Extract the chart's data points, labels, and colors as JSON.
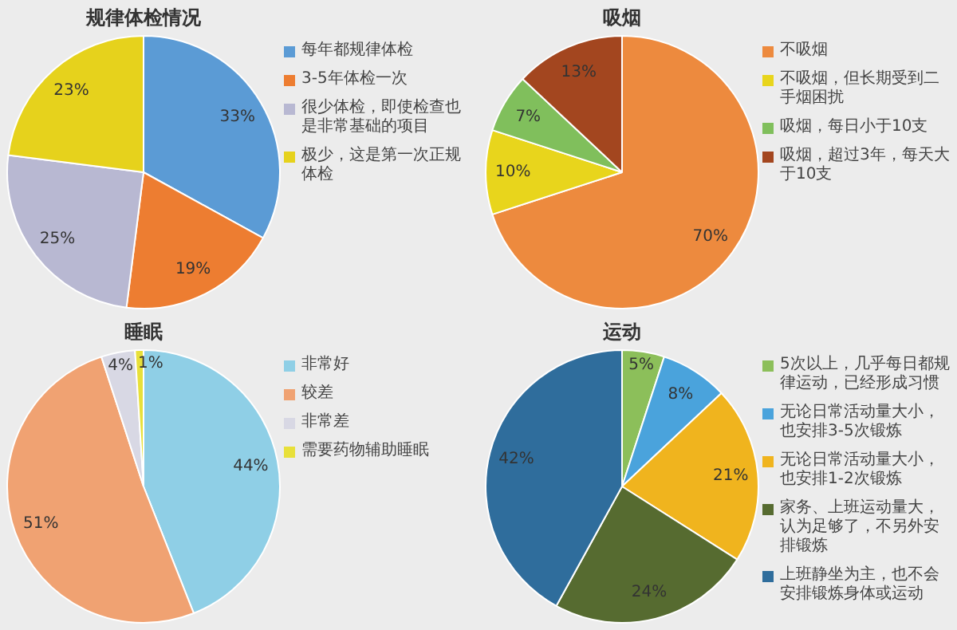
{
  "chart_data": [
    {
      "type": "pie",
      "title": "规律体检情况",
      "categories": [
        "每年都规律体检",
        "3-5年体检一次",
        "很少体检，即使检查也是非常基础的项目",
        "极少，这是第一次正规体检"
      ],
      "values": [
        33,
        19,
        25,
        23
      ],
      "colors": [
        "#5b9bd5",
        "#ed7d31",
        "#b8b8d2",
        "#e6d21c"
      ],
      "value_labels": [
        "33%",
        "19%",
        "25%",
        "23%"
      ],
      "legend": "right"
    },
    {
      "type": "pie",
      "title": "吸烟",
      "categories": [
        "不吸烟",
        "不吸烟，但长期受到二手烟困扰",
        "吸烟，每日小于10支",
        "吸烟，超过3年，每天大于10支"
      ],
      "values": [
        70,
        10,
        7,
        13
      ],
      "colors": [
        "#ed8a3e",
        "#e8d51c",
        "#80bf5c",
        "#a3461f"
      ],
      "value_labels": [
        "70%",
        "10%",
        "7%",
        "13%"
      ],
      "legend": "right"
    },
    {
      "type": "pie",
      "title": "睡眠",
      "categories": [
        "非常好",
        "较差",
        "非常差",
        "需要药物辅助睡眠"
      ],
      "values": [
        44,
        51,
        4,
        1
      ],
      "colors": [
        "#8fcfe6",
        "#f0a272",
        "#d8d8e4",
        "#e8e03a"
      ],
      "value_labels": [
        "44%",
        "51%",
        "4%",
        "1%"
      ],
      "legend": "right"
    },
    {
      "type": "pie",
      "title": "运动",
      "categories": [
        "5次以上，几乎每日都规律运动，已经形成习惯",
        "无论日常活动量大小，也安排3-5次锻炼",
        "无论日常活动量大小，也安排1-2次锻炼",
        "家务、上班运动量大，认为足够了，不另外安排锻炼",
        "上班静坐为主，也不会安排锻炼身体或运动"
      ],
      "values": [
        5,
        8,
        21,
        24,
        42
      ],
      "colors": [
        "#8cbf5a",
        "#4aa3dc",
        "#f0b41e",
        "#566b30",
        "#2f6d9c"
      ],
      "value_labels": [
        "5%",
        "8%",
        "21%",
        "24%",
        "42%"
      ],
      "legend": "right"
    }
  ]
}
